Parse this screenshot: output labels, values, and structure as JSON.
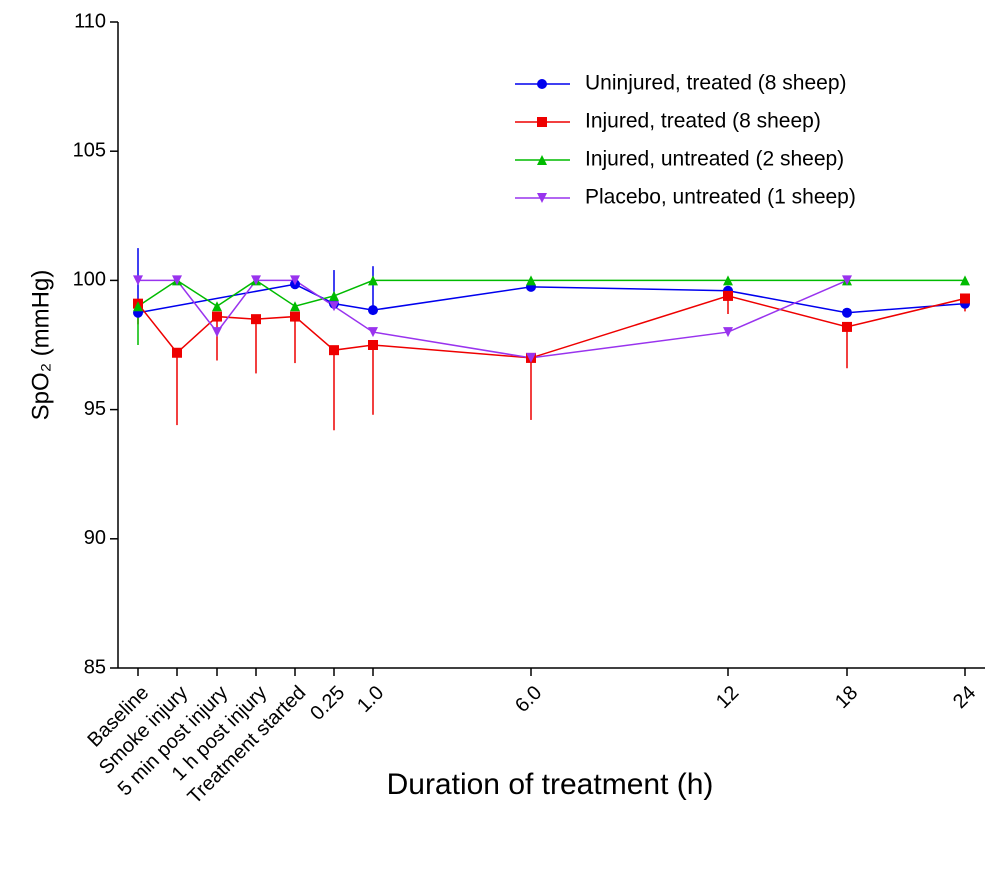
{
  "chart_data": {
    "type": "line",
    "x_label": "Duration of treatment (h)",
    "y_label": "SpO₂ (mmHg)",
    "categories": [
      "Baseline",
      "Smoke injury",
      "5 min post injury",
      "1 h post injury",
      "Treatment started",
      "0.25",
      "1.0",
      "6.0",
      "12",
      "18",
      "24"
    ],
    "ylim": [
      85,
      110
    ],
    "yticks": [
      85,
      90,
      95,
      100,
      105,
      110
    ],
    "legend": "upper right",
    "series": [
      {
        "name": "Uninjured, treated (8 sheep)",
        "color": "#0000ee",
        "marker": "circle",
        "error_direction": "up",
        "values": [
          98.75,
          null,
          null,
          null,
          99.85,
          99.1,
          98.85,
          99.75,
          99.6,
          98.75,
          99.1
        ],
        "errors": [
          2.5,
          null,
          null,
          null,
          null,
          1.3,
          1.7,
          0.3,
          null,
          null,
          0.3
        ]
      },
      {
        "name": "Injured, treated (8 sheep)",
        "color": "#ee0000",
        "marker": "square",
        "error_direction": "down",
        "values": [
          99.1,
          97.2,
          98.6,
          98.5,
          98.6,
          97.3,
          97.5,
          97.0,
          99.4,
          98.2,
          99.3
        ],
        "errors": [
          0.8,
          2.8,
          1.7,
          2.1,
          1.8,
          3.1,
          2.7,
          2.4,
          0.7,
          1.6,
          0.5
        ]
      },
      {
        "name": "Injured, untreated (2 sheep)",
        "color": "#00bb00",
        "marker": "triangle-up",
        "error_direction": "down",
        "values": [
          99.0,
          100,
          99.0,
          100,
          99.0,
          99.4,
          100,
          100,
          100,
          100,
          100
        ],
        "errors": [
          1.5,
          null,
          null,
          null,
          null,
          null,
          null,
          null,
          null,
          null,
          null
        ]
      },
      {
        "name": "Placebo, untreated (1 sheep)",
        "color": "#9933ee",
        "marker": "triangle-down",
        "values": [
          100,
          100,
          98.0,
          100,
          100,
          99.0,
          98.0,
          97.0,
          98.0,
          100,
          null
        ]
      }
    ]
  }
}
